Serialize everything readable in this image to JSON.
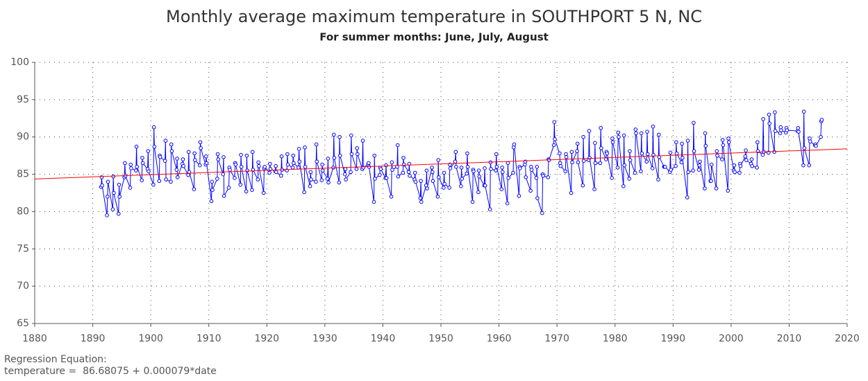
{
  "chart_data": {
    "type": "line",
    "title": "Monthly average maximum temperature in SOUTHPORT 5 N, NC",
    "subtitle": "For summer months: June, July, August",
    "annotations": [
      "Regression Equation:",
      "temperature =  86.68075 + 0.000079*date"
    ],
    "xlim": [
      1880,
      2020
    ],
    "xticks": [
      1880,
      1890,
      1900,
      1910,
      1920,
      1930,
      1940,
      1950,
      1960,
      1970,
      1980,
      1990,
      2000,
      2010,
      2020
    ],
    "ylim": [
      65,
      100
    ],
    "yticks": [
      65,
      70,
      75,
      80,
      85,
      90,
      95,
      100
    ],
    "grid": true,
    "series": [
      {
        "color": "#0000ff",
        "markers": true,
        "x": [
          1891.45,
          1891.54,
          1891.62,
          1892.45,
          1892.54,
          1892.62,
          1893.45,
          1893.54,
          1893.62,
          1894.45,
          1894.54,
          1894.62,
          1895.45,
          1895.54,
          1895.62,
          1896.45,
          1896.54,
          1896.62,
          1897.45,
          1897.54,
          1897.62,
          1898.45,
          1898.54,
          1898.62,
          1899.45,
          1899.54,
          1899.62,
          1900.45,
          1900.54,
          1900.62,
          1901.45,
          1901.54,
          1901.62,
          1902.45,
          1902.54,
          1902.62,
          1903.45,
          1903.54,
          1903.62,
          1904.45,
          1904.54,
          1904.62,
          1905.45,
          1905.54,
          1905.62,
          1906.45,
          1906.54,
          1906.62,
          1907.45,
          1907.54,
          1907.62,
          1908.45,
          1908.54,
          1908.62,
          1909.45,
          1909.54,
          1909.62,
          1910.45,
          1910.54,
          1910.62,
          1911.45,
          1911.54,
          1911.62,
          1912.45,
          1912.54,
          1912.62,
          1913.45,
          1913.54,
          1913.62,
          1914.45,
          1914.54,
          1914.62,
          1915.45,
          1915.54,
          1915.62,
          1916.45,
          1916.54,
          1916.62,
          1917.45,
          1917.54,
          1917.62,
          1918.45,
          1918.54,
          1918.62,
          1919.45,
          1919.54,
          1919.62,
          1920.45,
          1920.54,
          1920.62,
          1921.45,
          1921.54,
          1921.62,
          1922.45,
          1922.54,
          1922.62,
          1923.45,
          1923.54,
          1923.62,
          1924.45,
          1924.54,
          1924.62,
          1925.45,
          1925.54,
          1925.62,
          1926.45,
          1926.54,
          1926.62,
          1927.45,
          1927.54,
          1927.62,
          1928.45,
          1928.54,
          1928.62,
          1929.45,
          1929.54,
          1929.62,
          1930.45,
          1930.54,
          1930.62,
          1931.45,
          1931.54,
          1931.62,
          1932.45,
          1932.54,
          1932.62,
          1933.45,
          1933.54,
          1933.62,
          1934.45,
          1934.54,
          1934.62,
          1935.45,
          1935.54,
          1935.62,
          1936.45,
          1936.54,
          1936.62,
          1937.45,
          1937.54,
          1937.62,
          1938.45,
          1938.54,
          1938.62,
          1939.45,
          1939.54,
          1939.62,
          1940.45,
          1940.54,
          1940.62,
          1941.45,
          1941.54,
          1941.62,
          1942.45,
          1942.54,
          1942.62,
          1943.45,
          1943.54,
          1943.62,
          1944.45,
          1944.54,
          1944.62,
          1945.45,
          1945.54,
          1945.62,
          1946.45,
          1946.54,
          1946.62,
          1947.45,
          1947.54,
          1947.62,
          1948.45,
          1948.54,
          1948.62,
          1949.45,
          1949.54,
          1949.62,
          1950.45,
          1950.54,
          1950.62,
          1951.45,
          1951.54,
          1951.62,
          1952.45,
          1952.54,
          1952.62,
          1953.45,
          1953.54,
          1953.62,
          1954.45,
          1954.54,
          1954.62,
          1955.45,
          1955.54,
          1955.62,
          1956.45,
          1956.54,
          1956.62,
          1957.45,
          1957.54,
          1957.62,
          1958.45,
          1958.54,
          1958.62,
          1959.45,
          1959.54,
          1959.62,
          1960.45,
          1960.54,
          1960.62,
          1961.45,
          1961.54,
          1961.62,
          1962.45,
          1962.54,
          1962.62,
          1963.45,
          1963.54,
          1963.62,
          1964.45,
          1964.54,
          1964.62,
          1965.45,
          1965.54,
          1965.62,
          1966.45,
          1966.54,
          1966.62,
          1967.45,
          1967.54,
          1967.62,
          1968.45,
          1968.54,
          1968.62,
          1969.45,
          1969.54,
          1969.62,
          1970.45,
          1970.54,
          1970.62,
          1971.45,
          1971.54,
          1971.62,
          1972.45,
          1972.54,
          1972.62,
          1973.45,
          1973.54,
          1973.62,
          1974.45,
          1974.54,
          1974.62,
          1975.45,
          1975.54,
          1975.62,
          1976.45,
          1976.54,
          1976.62,
          1977.45,
          1977.54,
          1977.62,
          1978.45,
          1978.54,
          1978.62,
          1979.45,
          1979.54,
          1979.62,
          1980.45,
          1980.54,
          1980.62,
          1981.45,
          1981.54,
          1981.62,
          1982.45,
          1982.54,
          1982.62,
          1983.45,
          1983.54,
          1983.62,
          1984.45,
          1984.54,
          1984.62,
          1985.45,
          1985.54,
          1985.62,
          1986.45,
          1986.54,
          1986.62,
          1987.45,
          1987.54,
          1987.62,
          1988.45,
          1988.54,
          1988.62,
          1989.45,
          1989.54,
          1989.62,
          1990.45,
          1990.54,
          1990.62,
          1991.45,
          1991.54,
          1991.62,
          1992.45,
          1992.54,
          1992.62,
          1993.45,
          1993.54,
          1993.62,
          1994.45,
          1994.54,
          1994.62,
          1995.45,
          1995.54,
          1995.62,
          1996.45,
          1996.54,
          1996.62,
          1997.45,
          1997.54,
          1997.62,
          1998.45,
          1998.54,
          1998.62,
          1999.45,
          1999.54,
          1999.62,
          2000.45,
          2000.54,
          2000.62,
          2001.45,
          2001.54,
          2001.62,
          2002.45,
          2002.54,
          2002.62,
          2003.45,
          2003.54,
          2003.62,
          2004.45,
          2004.54,
          2004.62,
          2005.45,
          2005.54,
          2005.62,
          2006.45,
          2006.54,
          2006.62,
          2007.45,
          2007.54,
          2007.62,
          2008.45,
          2008.54,
          2008.62,
          2009.45,
          2009.54,
          2009.62,
          2011.45,
          2011.54,
          2011.62,
          2012.45,
          2012.54,
          2012.62,
          2013.45,
          2013.54,
          2013.62,
          2014.45,
          2014.54,
          2014.62,
          2015.45,
          2015.54,
          2015.62
        ],
        "values": [
          83.3,
          84.6,
          83.5,
          79.5,
          82,
          84,
          80.3,
          84.7,
          82.5,
          79.7,
          83.6,
          82,
          84.6,
          86.5,
          84.8,
          83.2,
          86.3,
          85.8,
          85.5,
          88.7,
          86,
          84.2,
          87.2,
          86.5,
          85.7,
          88.1,
          85.4,
          83.6,
          91.3,
          88.7,
          84.1,
          87.5,
          87.3,
          86.8,
          89.5,
          84.3,
          84,
          89,
          88.1,
          85.6,
          87.1,
          84.6,
          86.4,
          87,
          86.1,
          84.9,
          88,
          85.3,
          83,
          87.8,
          86.9,
          86.2,
          89.3,
          88.5,
          86.3,
          87.4,
          86.5,
          81.4,
          84,
          82.9,
          84.4,
          87.7,
          87,
          85,
          87.3,
          82.1,
          83.2,
          85.9,
          85.6,
          84.5,
          86.5,
          86.3,
          83.6,
          87.6,
          86,
          82.7,
          87.5,
          85.5,
          82.9,
          88,
          85.6,
          84.3,
          86.6,
          86.1,
          82.5,
          85.8,
          86,
          85.2,
          86.4,
          85.7,
          85.4,
          86.1,
          85.3,
          84.8,
          87.4,
          85.6,
          85.5,
          87.7,
          86.3,
          85.9,
          87.5,
          86.5,
          85.9,
          88.4,
          86.7,
          82.6,
          88.6,
          86,
          83.4,
          85.3,
          84.3,
          84,
          89,
          86.7,
          84.2,
          86.3,
          85.5,
          84.4,
          87.1,
          83.9,
          85.9,
          90.3,
          87.2,
          83.9,
          90,
          87.5,
          85,
          85.7,
          84.3,
          85.3,
          90.2,
          87.7,
          85.7,
          88.5,
          87.7,
          85.7,
          89.5,
          85.9,
          86.3,
          86.5,
          86,
          81.3,
          87.5,
          84.4,
          84.9,
          85.9,
          85.7,
          84.5,
          86.2,
          84.5,
          82,
          86.6,
          85.6,
          86,
          88.9,
          84.7,
          85.2,
          87.2,
          86.3,
          85.3,
          86.4,
          84.8,
          84.3,
          85.2,
          84,
          81.8,
          84.1,
          81.3,
          83.5,
          85.5,
          83.1,
          85.9,
          85.3,
          84.1,
          82,
          86.9,
          84.6,
          83.2,
          85.2,
          83.7,
          83.2,
          86.3,
          85.8,
          86.7,
          88,
          86,
          83.4,
          85.9,
          84.4,
          85.1,
          87.8,
          86,
          81.3,
          85.6,
          85.4,
          82.6,
          85.5,
          84.7,
          83.5,
          85.8,
          83.5,
          80.3,
          86.6,
          85.7,
          85.5,
          87.7,
          86,
          83,
          85.9,
          85.3,
          81.1,
          86.5,
          84.5,
          85.2,
          88.6,
          89,
          82.1,
          86,
          85.8,
          86.3,
          86.7,
          84.6,
          82.8,
          86,
          85.6,
          84.5,
          86,
          81.8,
          79.8,
          85,
          84.8,
          84.6,
          87,
          86.9,
          88.9,
          92,
          89.7,
          87.8,
          86.5,
          86.1,
          85.4,
          87.7,
          87.3,
          82.5,
          88,
          86.6,
          88.1,
          89.1,
          86.6,
          83.5,
          90,
          86.8,
          86.9,
          90.8,
          87.2,
          83,
          89.2,
          86.5,
          86.5,
          91.2,
          88.5,
          87,
          88,
          87.8,
          84.5,
          89.8,
          89.3,
          85.9,
          90.6,
          90,
          83.4,
          90.2,
          86.2,
          84.4,
          88.1,
          86.9,
          85.2,
          91,
          90.5,
          85.4,
          90.5,
          87.8,
          86.7,
          90.7,
          87.7,
          85.8,
          91.4,
          87.6,
          84.3,
          90.3,
          87.3,
          86,
          86,
          86,
          85.3,
          87.9,
          85.6,
          86.1,
          89.3,
          87.8,
          86.6,
          89.1,
          87.2,
          81.9,
          89.5,
          85.3,
          85.5,
          91.9,
          88.1,
          85.6,
          86.2,
          86.7,
          83.1,
          90.5,
          88.8,
          84.1,
          84.1,
          86.3,
          83.1,
          88.1,
          87.5,
          87,
          89.6,
          88.9,
          82.8,
          89.8,
          89.3,
          85.5,
          86.2,
          85.3,
          85.2,
          86.4,
          86.1,
          87.4,
          88.2,
          86.9,
          86.4,
          87,
          86.1,
          85.9,
          89.3,
          88.1,
          87.6,
          92.4,
          88,
          87.9,
          93,
          91.8,
          88,
          93.3,
          90.8,
          90.5,
          91.3,
          90.9,
          90.6,
          91.2,
          90.9,
          90.8,
          91.2,
          90.7,
          86.2,
          93.4,
          88.5,
          86.2,
          89.8,
          89.4,
          88.9,
          89,
          88.8,
          90,
          92.1,
          92.3
        ]
      },
      {
        "color": "#ff0000",
        "markers": false,
        "x": [
          1880,
          2020
        ],
        "values": [
          84.37,
          88.41
        ]
      }
    ]
  }
}
